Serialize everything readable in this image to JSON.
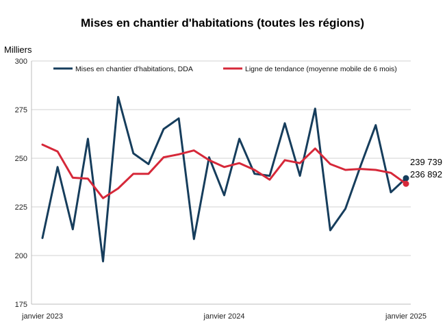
{
  "chart_data": {
    "type": "line",
    "title": "Mises en chantier d'habitations (toutes les régions)",
    "ylabel": "Milliers",
    "ylim": [
      175,
      300
    ],
    "yticks": [
      175,
      200,
      225,
      250,
      275,
      300
    ],
    "x": [
      "2023-01",
      "2023-02",
      "2023-03",
      "2023-04",
      "2023-05",
      "2023-06",
      "2023-07",
      "2023-08",
      "2023-09",
      "2023-10",
      "2023-11",
      "2023-12",
      "2024-01",
      "2024-02",
      "2024-03",
      "2024-04",
      "2024-05",
      "2024-06",
      "2024-07",
      "2024-08",
      "2024-09",
      "2024-10",
      "2024-11",
      "2024-12",
      "2025-01"
    ],
    "xtick_labels": [
      "janvier 2023",
      "janvier 2024",
      "janvier 2025"
    ],
    "series": [
      {
        "name": "Mises en chantier d'habitations, DDA",
        "color": "#163d5c",
        "values": [
          209,
          245.5,
          213.5,
          260,
          197,
          281.5,
          252.5,
          247,
          265,
          270.5,
          208.5,
          250.5,
          231,
          260,
          242,
          241,
          268,
          241,
          275.5,
          213,
          224,
          246,
          267,
          232.5,
          239.739
        ]
      },
      {
        "name": "Ligne de tendance (moyenne mobile de 6 mois)",
        "color": "#d62839",
        "values": [
          257,
          253.5,
          240,
          239.5,
          229.5,
          234.5,
          242,
          242,
          250.5,
          252,
          254,
          249,
          245.5,
          247.5,
          244,
          239,
          249,
          247.5,
          255,
          247,
          244,
          244.5,
          244,
          242.5,
          236.892
        ]
      }
    ],
    "end_labels": [
      "239 739",
      "236 892"
    ],
    "grid": true,
    "legend": "top"
  }
}
